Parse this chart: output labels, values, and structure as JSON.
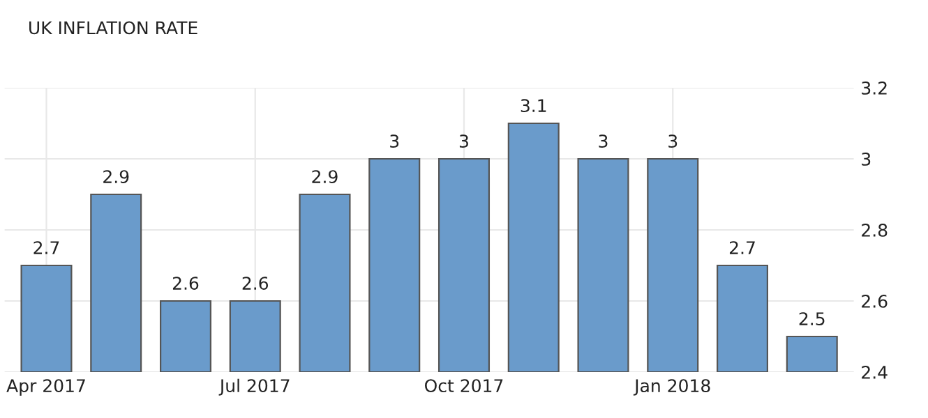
{
  "chart_data": {
    "type": "bar",
    "title": "UK INFLATION RATE",
    "categories": [
      "Apr 2017",
      null,
      null,
      "Jul 2017",
      null,
      null,
      "Oct 2017",
      null,
      null,
      "Jan 2018",
      null,
      null
    ],
    "values": [
      2.7,
      2.9,
      2.6,
      2.6,
      2.9,
      3,
      3,
      3.1,
      3,
      3,
      2.7,
      2.5
    ],
    "color": "#6a9bcb",
    "data_labels": true,
    "ylim": [
      2.4,
      3.2
    ],
    "yticks": [
      2.4,
      2.6,
      2.8,
      3,
      3.2
    ],
    "grid": true
  }
}
